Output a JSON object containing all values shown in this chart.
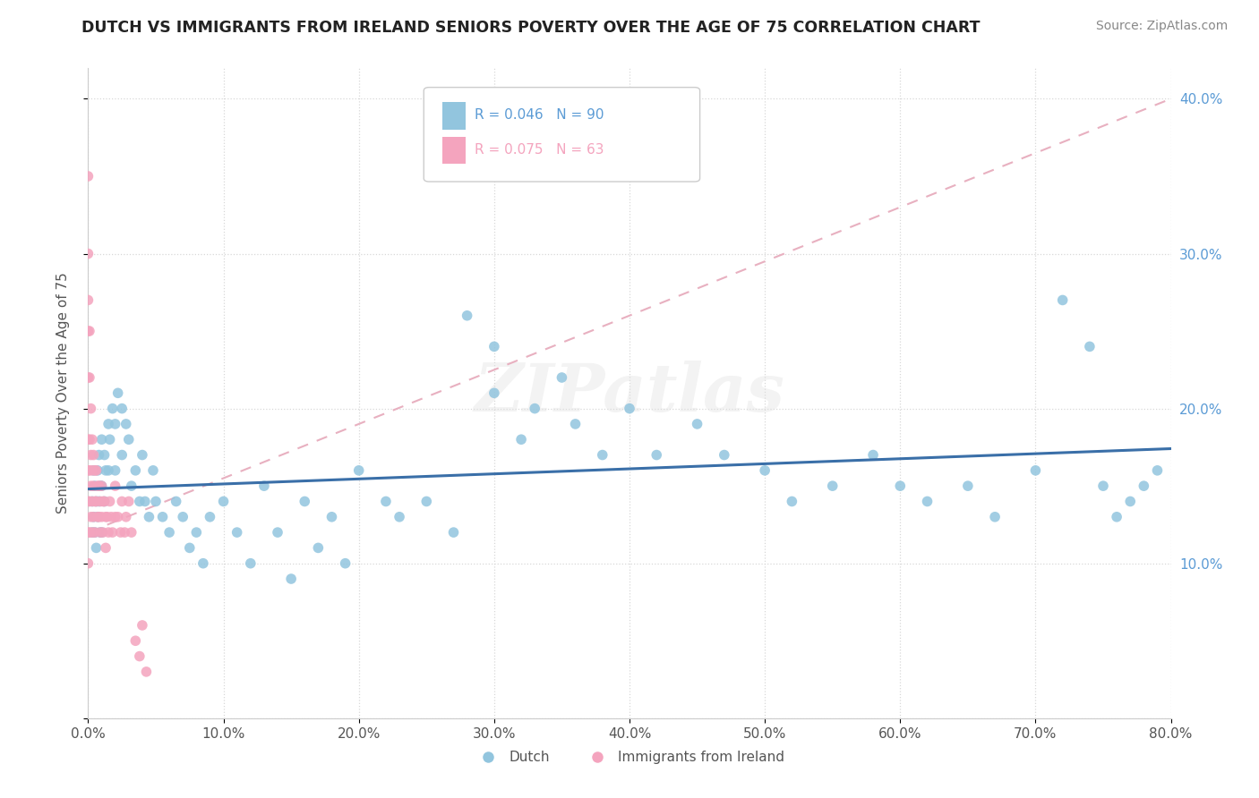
{
  "title": "DUTCH VS IMMIGRANTS FROM IRELAND SENIORS POVERTY OVER THE AGE OF 75 CORRELATION CHART",
  "source": "Source: ZipAtlas.com",
  "ylabel": "Seniors Poverty Over the Age of 75",
  "r_dutch": "R = 0.046",
  "n_dutch": "N = 90",
  "r_ireland": "R = 0.075",
  "n_ireland": "N = 63",
  "legend_dutch": "Dutch",
  "legend_ireland": "Immigrants from Ireland",
  "dutch_color": "#92c5de",
  "ireland_color": "#f4a4be",
  "trend_dutch_color": "#3a6fa8",
  "trend_ireland_color": "#e8b0c0",
  "right_tick_color": "#5b9bd5",
  "xlim": [
    0.0,
    0.8
  ],
  "ylim": [
    0.0,
    0.42
  ],
  "xticks": [
    0.0,
    0.1,
    0.2,
    0.3,
    0.4,
    0.5,
    0.6,
    0.7,
    0.8
  ],
  "yticks_right": [
    0.1,
    0.2,
    0.3,
    0.4
  ],
  "watermark": "ZIPatlas",
  "dutch_x": [
    0.003,
    0.003,
    0.004,
    0.004,
    0.005,
    0.005,
    0.006,
    0.006,
    0.007,
    0.007,
    0.008,
    0.008,
    0.009,
    0.009,
    0.01,
    0.01,
    0.01,
    0.012,
    0.012,
    0.013,
    0.015,
    0.015,
    0.016,
    0.018,
    0.02,
    0.02,
    0.022,
    0.025,
    0.025,
    0.028,
    0.03,
    0.032,
    0.035,
    0.038,
    0.04,
    0.042,
    0.045,
    0.048,
    0.05,
    0.055,
    0.06,
    0.065,
    0.07,
    0.075,
    0.08,
    0.085,
    0.09,
    0.1,
    0.11,
    0.12,
    0.13,
    0.14,
    0.15,
    0.16,
    0.17,
    0.18,
    0.19,
    0.2,
    0.22,
    0.23,
    0.25,
    0.27,
    0.28,
    0.3,
    0.3,
    0.32,
    0.33,
    0.35,
    0.36,
    0.38,
    0.4,
    0.42,
    0.45,
    0.47,
    0.5,
    0.52,
    0.55,
    0.58,
    0.6,
    0.62,
    0.65,
    0.67,
    0.7,
    0.72,
    0.74,
    0.75,
    0.76,
    0.77,
    0.78,
    0.79
  ],
  "dutch_y": [
    0.14,
    0.12,
    0.16,
    0.13,
    0.15,
    0.12,
    0.14,
    0.11,
    0.16,
    0.13,
    0.17,
    0.14,
    0.15,
    0.12,
    0.18,
    0.15,
    0.12,
    0.17,
    0.14,
    0.16,
    0.19,
    0.16,
    0.18,
    0.2,
    0.19,
    0.16,
    0.21,
    0.2,
    0.17,
    0.19,
    0.18,
    0.15,
    0.16,
    0.14,
    0.17,
    0.14,
    0.13,
    0.16,
    0.14,
    0.13,
    0.12,
    0.14,
    0.13,
    0.11,
    0.12,
    0.1,
    0.13,
    0.14,
    0.12,
    0.1,
    0.15,
    0.12,
    0.09,
    0.14,
    0.11,
    0.13,
    0.1,
    0.16,
    0.14,
    0.13,
    0.14,
    0.12,
    0.26,
    0.24,
    0.21,
    0.18,
    0.2,
    0.22,
    0.19,
    0.17,
    0.2,
    0.17,
    0.19,
    0.17,
    0.16,
    0.14,
    0.15,
    0.17,
    0.15,
    0.14,
    0.15,
    0.13,
    0.16,
    0.27,
    0.24,
    0.15,
    0.13,
    0.14,
    0.15,
    0.16
  ],
  "ireland_x": [
    0.0,
    0.0,
    0.0,
    0.0,
    0.0,
    0.0,
    0.0,
    0.0,
    0.0,
    0.0,
    0.001,
    0.001,
    0.001,
    0.001,
    0.001,
    0.001,
    0.002,
    0.002,
    0.002,
    0.002,
    0.003,
    0.003,
    0.003,
    0.003,
    0.004,
    0.004,
    0.004,
    0.005,
    0.005,
    0.005,
    0.006,
    0.006,
    0.007,
    0.007,
    0.008,
    0.008,
    0.009,
    0.009,
    0.01,
    0.01,
    0.011,
    0.011,
    0.012,
    0.013,
    0.013,
    0.014,
    0.015,
    0.016,
    0.017,
    0.018,
    0.02,
    0.02,
    0.022,
    0.024,
    0.025,
    0.027,
    0.028,
    0.03,
    0.032,
    0.035,
    0.038,
    0.04,
    0.043
  ],
  "ireland_y": [
    0.35,
    0.3,
    0.27,
    0.25,
    0.22,
    0.18,
    0.16,
    0.14,
    0.12,
    0.1,
    0.25,
    0.22,
    0.18,
    0.16,
    0.14,
    0.12,
    0.2,
    0.17,
    0.15,
    0.13,
    0.18,
    0.16,
    0.14,
    0.12,
    0.17,
    0.15,
    0.13,
    0.16,
    0.14,
    0.12,
    0.16,
    0.14,
    0.15,
    0.13,
    0.15,
    0.13,
    0.14,
    0.12,
    0.15,
    0.13,
    0.14,
    0.12,
    0.14,
    0.13,
    0.11,
    0.13,
    0.12,
    0.14,
    0.13,
    0.12,
    0.15,
    0.13,
    0.13,
    0.12,
    0.14,
    0.12,
    0.13,
    0.14,
    0.12,
    0.05,
    0.04,
    0.06,
    0.03
  ]
}
